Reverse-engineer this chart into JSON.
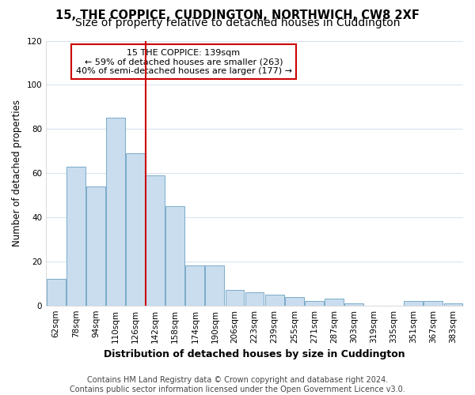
{
  "title": "15, THE COPPICE, CUDDINGTON, NORTHWICH, CW8 2XF",
  "subtitle": "Size of property relative to detached houses in Cuddington",
  "xlabel": "Distribution of detached houses by size in Cuddington",
  "ylabel": "Number of detached properties",
  "bar_color": "#c9ddef",
  "bar_edge_color": "#7aaac8",
  "categories": [
    "62sqm",
    "78sqm",
    "94sqm",
    "110sqm",
    "126sqm",
    "142sqm",
    "158sqm",
    "174sqm",
    "190sqm",
    "206sqm",
    "223sqm",
    "239sqm",
    "255sqm",
    "271sqm",
    "287sqm",
    "303sqm",
    "319sqm",
    "335sqm",
    "351sqm",
    "367sqm",
    "383sqm"
  ],
  "values": [
    12,
    63,
    54,
    85,
    69,
    59,
    45,
    18,
    18,
    7,
    6,
    5,
    4,
    2,
    3,
    1,
    0,
    0,
    2,
    2,
    1
  ],
  "ylim": [
    0,
    120
  ],
  "yticks": [
    0,
    20,
    40,
    60,
    80,
    100,
    120
  ],
  "line_x_index": 5,
  "annotation_text": "15 THE COPPICE: 139sqm\n← 59% of detached houses are smaller (263)\n40% of semi-detached houses are larger (177) →",
  "annotation_box_color": "#ffffff",
  "annotation_box_edge": "#cc0000",
  "line_color": "#cc0000",
  "footer1": "Contains HM Land Registry data © Crown copyright and database right 2024.",
  "footer2": "Contains public sector information licensed under the Open Government Licence v3.0.",
  "background_color": "#ffffff",
  "grid_color": "#d8e4f0",
  "title_fontsize": 10.5,
  "tick_fontsize": 7.5,
  "ylabel_fontsize": 8.5,
  "xlabel_fontsize": 9,
  "annotation_fontsize": 8,
  "footer_fontsize": 7
}
